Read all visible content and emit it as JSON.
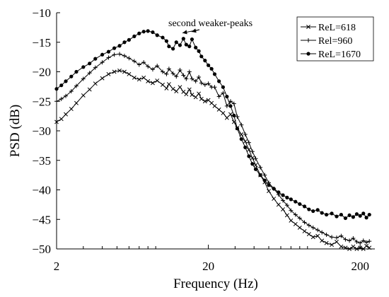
{
  "chart_data": {
    "type": "line",
    "xlabel": "Frequency (Hz)",
    "ylabel": "PSD (dB)",
    "x_scale": "log",
    "xlim": [
      2,
      250
    ],
    "ylim": [
      -50,
      -10
    ],
    "x_ticks": [
      2,
      20,
      200
    ],
    "y_ticks": [
      -10,
      -15,
      -20,
      -25,
      -30,
      -35,
      -40,
      -45,
      -50
    ],
    "grid": false,
    "legend_position": "top-right",
    "annotation": {
      "text": "second weaker-peaks",
      "targets": [
        [
          13.5,
          -13.9
        ],
        [
          15.5,
          -13.7
        ]
      ]
    },
    "series": [
      {
        "name": "ReL=618",
        "marker": "x",
        "x": [
          2,
          2.15,
          2.3,
          2.5,
          2.7,
          3.0,
          3.3,
          3.6,
          4.0,
          4.4,
          4.8,
          5.2,
          5.6,
          6.0,
          6.5,
          7.0,
          7.5,
          8.0,
          8.6,
          9.2,
          10,
          10.6,
          11,
          11.7,
          12.3,
          13,
          13.7,
          14.3,
          15,
          15.6,
          16.5,
          17.3,
          18,
          19,
          20,
          21,
          22,
          23.5,
          25,
          26.5,
          28,
          29.5,
          31,
          33,
          35,
          37,
          39,
          41,
          44,
          47,
          50,
          54,
          58,
          62,
          66,
          70,
          75,
          80,
          86,
          92,
          98,
          105,
          112,
          120,
          130,
          140,
          150,
          160,
          170,
          180,
          190,
          200,
          210,
          220,
          230
        ],
        "y": [
          -28.5,
          -28.0,
          -27.2,
          -26.3,
          -25.3,
          -24.0,
          -23.0,
          -22.0,
          -21.1,
          -20.4,
          -20.0,
          -19.8,
          -20.0,
          -20.4,
          -21.0,
          -21.3,
          -21.0,
          -21.6,
          -21.9,
          -21.5,
          -22.2,
          -22.8,
          -22.1,
          -22.9,
          -23.3,
          -22.6,
          -23.4,
          -23.8,
          -23.0,
          -23.9,
          -24.3,
          -23.7,
          -24.6,
          -25.0,
          -24.8,
          -25.3,
          -25.8,
          -26.4,
          -27.0,
          -27.8,
          -27.2,
          -28.5,
          -29.5,
          -30.6,
          -31.8,
          -33.2,
          -34.6,
          -35.8,
          -37.5,
          -38.7,
          -40.2,
          -41.5,
          -42.5,
          -43.3,
          -44.3,
          -45.2,
          -45.8,
          -46.4,
          -47.0,
          -47.5,
          -48.0,
          -47.8,
          -48.6,
          -49.0,
          -49.3,
          -48.8,
          -49.6,
          -49.8,
          -50.0,
          -49.6,
          -50.0,
          -49.8,
          -50.0,
          -49.5,
          -49.8
        ]
      },
      {
        "name": "Rel=960",
        "marker": "+",
        "x": [
          2,
          2.15,
          2.3,
          2.5,
          2.7,
          3.0,
          3.3,
          3.6,
          4.0,
          4.4,
          4.8,
          5.2,
          5.6,
          6.0,
          6.5,
          7.0,
          7.5,
          8.0,
          8.6,
          9.2,
          10,
          10.6,
          11,
          11.7,
          12.3,
          13,
          13.7,
          14.3,
          15,
          15.6,
          16.5,
          17.3,
          18,
          19,
          20,
          21,
          22,
          23.5,
          25,
          26.5,
          28,
          29.5,
          31,
          33,
          35,
          37,
          39,
          41,
          44,
          47,
          50,
          54,
          58,
          62,
          66,
          70,
          75,
          80,
          86,
          92,
          98,
          105,
          112,
          120,
          130,
          140,
          150,
          160,
          170,
          180,
          190,
          200,
          210,
          220,
          230
        ],
        "y": [
          -25.0,
          -24.6,
          -24.1,
          -23.3,
          -22.4,
          -21.2,
          -20.2,
          -19.3,
          -18.4,
          -17.6,
          -17.1,
          -17.0,
          -17.3,
          -17.7,
          -18.2,
          -18.8,
          -18.4,
          -19.1,
          -19.6,
          -19.0,
          -20.0,
          -20.4,
          -19.5,
          -20.3,
          -20.8,
          -19.7,
          -20.6,
          -21.2,
          -20.0,
          -21.2,
          -21.6,
          -20.9,
          -21.9,
          -22.2,
          -22.0,
          -22.6,
          -22.6,
          -24.2,
          -23.6,
          -25.8,
          -25.0,
          -25.4,
          -27.6,
          -29.0,
          -30.6,
          -32.0,
          -33.5,
          -34.7,
          -36.2,
          -37.5,
          -38.8,
          -39.8,
          -40.8,
          -41.8,
          -42.6,
          -43.5,
          -44.2,
          -44.8,
          -45.5,
          -46.0,
          -46.4,
          -46.8,
          -47.2,
          -47.6,
          -48.0,
          -48.1,
          -47.8,
          -48.4,
          -48.6,
          -48.2,
          -48.8,
          -49.0,
          -48.6,
          -48.9,
          -48.7
        ]
      },
      {
        "name": "ReL=1670",
        "marker": "circle",
        "x": [
          2,
          2.15,
          2.3,
          2.5,
          2.7,
          3.0,
          3.3,
          3.6,
          4.0,
          4.4,
          4.8,
          5.2,
          5.6,
          6.0,
          6.5,
          7.0,
          7.5,
          8.0,
          8.6,
          9.2,
          10,
          10.6,
          11,
          11.7,
          12.3,
          13,
          13.7,
          14.3,
          15,
          15.6,
          16.5,
          17.3,
          18,
          19,
          20,
          21,
          22,
          23.5,
          25,
          26.5,
          28,
          29.5,
          31,
          33,
          35,
          37,
          39,
          41,
          44,
          47,
          50,
          54,
          58,
          62,
          66,
          70,
          75,
          80,
          86,
          92,
          98,
          105,
          112,
          120,
          130,
          140,
          150,
          160,
          170,
          180,
          190,
          200,
          210,
          220,
          230
        ],
        "y": [
          -22.9,
          -22.3,
          -21.6,
          -20.8,
          -20.0,
          -19.2,
          -18.6,
          -17.8,
          -17.1,
          -16.6,
          -16.0,
          -15.6,
          -15.0,
          -14.6,
          -14.0,
          -13.5,
          -13.2,
          -13.1,
          -13.3,
          -13.8,
          -14.2,
          -14.8,
          -15.7,
          -16.1,
          -15.0,
          -15.5,
          -14.4,
          -15.4,
          -15.7,
          -14.5,
          -15.9,
          -16.5,
          -17.4,
          -18.1,
          -18.9,
          -19.5,
          -20.4,
          -21.6,
          -22.6,
          -24.2,
          -25.8,
          -27.4,
          -29.6,
          -31.4,
          -32.8,
          -34.3,
          -35.6,
          -36.5,
          -37.5,
          -38.4,
          -39.2,
          -39.8,
          -40.4,
          -40.9,
          -41.3,
          -41.6,
          -42.0,
          -42.4,
          -42.8,
          -43.3,
          -43.6,
          -43.4,
          -43.9,
          -44.2,
          -44.0,
          -44.5,
          -44.2,
          -44.8,
          -44.3,
          -44.6,
          -44.1,
          -44.4,
          -44.0,
          -44.7,
          -44.2
        ]
      }
    ]
  }
}
